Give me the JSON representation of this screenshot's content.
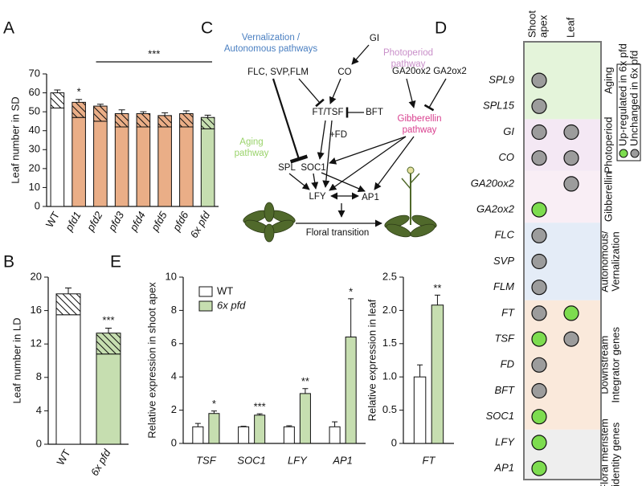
{
  "panel_labels": [
    "A",
    "B",
    "C",
    "D",
    "E"
  ],
  "chart_data": [
    {
      "type": "bar",
      "stacked": true,
      "ylabel": "Leaf number in SD",
      "categories": [
        "WT",
        "pfd1",
        "pfd2",
        "pfd3",
        "pfd4",
        "pfd5",
        "pfd6",
        "6x pfd"
      ],
      "bar_colors": [
        "#ffffff",
        "#eaae87",
        "#eaae87",
        "#eaae87",
        "#eaae87",
        "#eaae87",
        "#eaae87",
        "#c6deb0"
      ],
      "series": [
        {
          "values": [
            52,
            47,
            45,
            42,
            42,
            42,
            42,
            41
          ]
        },
        {
          "hatch": true,
          "values": [
            8,
            8,
            8,
            7,
            7,
            6,
            7,
            6
          ],
          "errors": [
            1.5,
            1.5,
            1,
            2,
            1,
            1.5,
            1.5,
            1.2
          ]
        }
      ],
      "ylim": [
        0,
        70
      ],
      "yticks": [
        0,
        10,
        20,
        30,
        40,
        50,
        60,
        70
      ],
      "annotations": [
        {
          "label": "*",
          "bars": [
            1
          ]
        },
        {
          "label": "***",
          "bars": [
            2,
            7
          ]
        }
      ]
    },
    {
      "type": "bar",
      "stacked": true,
      "ylabel": "Leaf number in LD",
      "categories": [
        "WT",
        "6x pfd"
      ],
      "bar_colors": [
        "#ffffff",
        "#c6deb0"
      ],
      "series": [
        {
          "values": [
            15.5,
            10.8
          ]
        },
        {
          "hatch": true,
          "values": [
            2.5,
            2.5
          ],
          "errors": [
            0.7,
            0.6
          ]
        }
      ],
      "ylim": [
        0,
        20
      ],
      "yticks": [
        0,
        4,
        8,
        12,
        16,
        20
      ],
      "annotations": [
        {
          "label": "***",
          "bars": [
            1
          ]
        }
      ]
    },
    {
      "type": "bar",
      "ylabel": "Relative expression in shoot apex",
      "italic_categories": true,
      "categories": [
        "TSF",
        "SOC1",
        "LFY",
        "AP1"
      ],
      "series": [
        {
          "name": "WT",
          "color": "#ffffff",
          "values": [
            1,
            1,
            1,
            1
          ],
          "errors": [
            0.2,
            0.03,
            0.06,
            0.3
          ]
        },
        {
          "name": "6x pfd",
          "color": "#c6deb0",
          "values": [
            1.8,
            1.7,
            3.0,
            6.4
          ],
          "errors": [
            0.15,
            0.08,
            0.3,
            2.3
          ]
        }
      ],
      "significance": [
        "*",
        "***",
        "**",
        "*"
      ],
      "legend": "upper left",
      "ylim": [
        0,
        10
      ],
      "yticks": [
        0,
        2,
        4,
        6,
        8,
        10
      ]
    },
    {
      "type": "bar",
      "ylabel": "Relative expression in leaf",
      "italic_categories": true,
      "categories": [
        "FT"
      ],
      "series": [
        {
          "color": "#ffffff",
          "values": [
            1.0
          ],
          "errors": [
            0.18
          ]
        },
        {
          "color": "#c6deb0",
          "values": [
            2.08
          ],
          "errors": [
            0.15
          ]
        }
      ],
      "significance": [
        "**"
      ],
      "ylim": [
        0,
        2.5
      ],
      "yticks": [
        0,
        0.5,
        {
          "value": 1,
          "label": "1.0"
        },
        1.5,
        {
          "value": 2,
          "label": "2.0"
        },
        2.5
      ]
    }
  ],
  "diagram": {
    "nodes": [
      {
        "lines": [
          "Vernalization /",
          "Autonomous pathways"
        ]
      },
      {
        "lines": [
          "GI"
        ]
      },
      {
        "lines": [
          "Photoperiod",
          "pathway"
        ]
      },
      {
        "lines": [
          "FLC, SVP,FLM"
        ]
      },
      {
        "lines": [
          "CO"
        ]
      },
      {
        "lines": [
          "GA20ox2"
        ]
      },
      {
        "lines": [
          "GA2ox2"
        ]
      },
      {
        "lines": [
          "FT/TSF"
        ]
      },
      {
        "lines": [
          "BFT"
        ]
      },
      {
        "lines": [
          "Gibberellin",
          "pathway"
        ]
      },
      {
        "lines": [
          "+FD"
        ]
      },
      {
        "lines": [
          "Aging",
          "pathway"
        ]
      },
      {
        "lines": [
          "SPL"
        ]
      },
      {
        "lines": [
          "SOC1"
        ]
      },
      {
        "lines": [
          "LFY"
        ]
      },
      {
        "lines": [
          "AP1"
        ]
      },
      {
        "lines": [
          "Floral transition"
        ]
      }
    ]
  },
  "expression_matrix": {
    "columns": [
      {
        "lines": [
          "Shoot",
          "apex"
        ]
      },
      {
        "lines": [
          "Leaf"
        ]
      }
    ],
    "legend": [
      {
        "label": "Up-regulated in 6x pfd",
        "color": "#7ddc4f"
      },
      {
        "label": "Unchanged in 6x pfd",
        "color": "#9c9c9c"
      }
    ],
    "groups": [
      {
        "lines": [
          "Aging"
        ],
        "color": "#e4f4da",
        "genes": [
          {
            "name": "SPL9",
            "status": [
              1,
              null
            ]
          },
          {
            "name": "SPL15",
            "status": [
              1,
              null
            ]
          }
        ]
      },
      {
        "lines": [
          "Photoperiod"
        ],
        "color": "#f4e8f4",
        "genes": [
          {
            "name": "GI",
            "status": [
              1,
              1
            ]
          },
          {
            "name": "CO",
            "status": [
              1,
              1
            ]
          }
        ]
      },
      {
        "lines": [
          "Gibberellin"
        ],
        "color": "#f9eef5",
        "genes": [
          {
            "name": "GA20ox2",
            "status": [
              null,
              1
            ]
          },
          {
            "name": "GA2ox2",
            "status": [
              0,
              null
            ]
          }
        ]
      },
      {
        "lines": [
          "Autonomous/",
          "Vernalization"
        ],
        "color": "#e4ecf7",
        "genes": [
          {
            "name": "FLC",
            "status": [
              1,
              null
            ]
          },
          {
            "name": "SVP",
            "status": [
              1,
              null
            ]
          },
          {
            "name": "FLM",
            "status": [
              1,
              null
            ]
          }
        ]
      },
      {
        "lines": [
          "Downstream",
          "Integrator genes"
        ],
        "color": "#fae9db",
        "genes": [
          {
            "name": "FT",
            "status": [
              1,
              0
            ]
          },
          {
            "name": "TSF",
            "status": [
              0,
              1
            ]
          },
          {
            "name": "FD",
            "status": [
              1,
              null
            ]
          },
          {
            "name": "BFT",
            "status": [
              1,
              null
            ]
          },
          {
            "name": "SOC1",
            "status": [
              0,
              null
            ]
          }
        ]
      },
      {
        "lines": [
          "Floral meristem",
          "identity genes"
        ],
        "color": "#eeeeee",
        "genes": [
          {
            "name": "LFY",
            "status": [
              0,
              null
            ]
          },
          {
            "name": "AP1",
            "status": [
              0,
              null
            ]
          }
        ]
      }
    ]
  }
}
